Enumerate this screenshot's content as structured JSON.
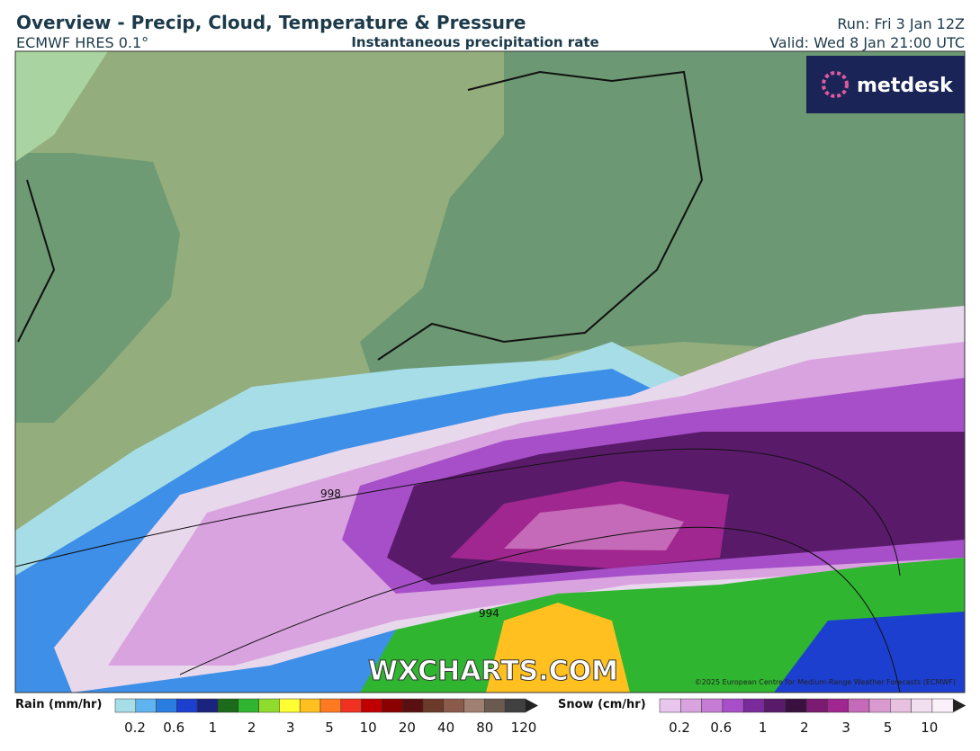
{
  "header": {
    "title": "Overview - Precip, Cloud, Temperature & Pressure",
    "model": "ECMWF HRES 0.1°",
    "field": "Instantaneous precipitation rate",
    "run": "Run: Fri 3 Jan 12Z",
    "valid": "Valid: Wed 8 Jan 21:00 UTC"
  },
  "logo": "metdesk",
  "map": {
    "isobars": [
      "998",
      "994"
    ],
    "watermark": "WXCHARTS.COM",
    "copyright": "©2025 European Centre for Medium-Range Weather Forecasts (ECMWF)"
  },
  "legend": {
    "rain": {
      "label": "Rain (mm/hr)",
      "ticks": [
        0.2,
        0.6,
        1,
        2,
        3,
        5,
        10,
        20,
        40,
        80,
        120
      ]
    },
    "snow": {
      "label": "Snow (cm/hr)",
      "ticks": [
        0.2,
        0.6,
        1,
        2,
        3,
        5,
        10
      ]
    }
  }
}
